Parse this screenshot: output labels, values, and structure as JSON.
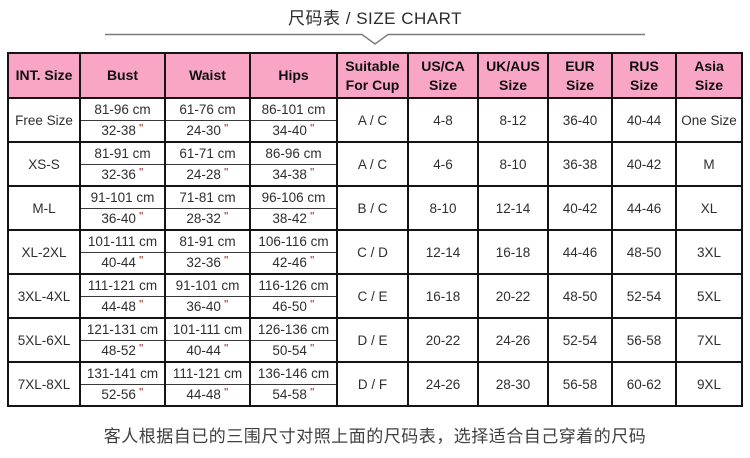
{
  "page": {
    "title": "尺码表 / SIZE CHART",
    "note": "客人根据自已的三围尺寸对照上面的尺码表，选择适合自己穿着的尺码"
  },
  "colors": {
    "header_bg": "#f8a5c6",
    "table_border": "#141414",
    "inch_mark_color": "#b2524f"
  },
  "table": {
    "inch_mark": "\"",
    "headers": [
      {
        "id": "int-size",
        "lines": [
          "INT. Size"
        ]
      },
      {
        "id": "bust",
        "lines": [
          "Bust"
        ]
      },
      {
        "id": "waist",
        "lines": [
          "Waist"
        ]
      },
      {
        "id": "hips",
        "lines": [
          "Hips"
        ]
      },
      {
        "id": "cup",
        "lines": [
          "Suitable",
          "For Cup"
        ]
      },
      {
        "id": "us-ca",
        "lines": [
          "US/CA",
          "Size"
        ]
      },
      {
        "id": "uk-aus",
        "lines": [
          "UK/AUS",
          "Size"
        ]
      },
      {
        "id": "eur",
        "lines": [
          "EUR",
          "Size"
        ]
      },
      {
        "id": "rus",
        "lines": [
          "RUS",
          "Size"
        ]
      },
      {
        "id": "asia",
        "lines": [
          "Asia",
          "Size"
        ]
      }
    ],
    "rows": [
      {
        "int_size": "Free Size",
        "bust_cm": "81-96 cm",
        "bust_in": "32-38",
        "waist_cm": "61-76 cm",
        "waist_in": "24-30",
        "hips_cm": "86-101 cm",
        "hips_in": "34-40",
        "cup": "A / C",
        "us_ca": "4-8",
        "uk_aus": "8-12",
        "eur": "36-40",
        "rus": "40-44",
        "asia": "One Size"
      },
      {
        "int_size": "XS-S",
        "bust_cm": "81-91 cm",
        "bust_in": "32-36",
        "waist_cm": "61-71 cm",
        "waist_in": "24-28",
        "hips_cm": "86-96 cm",
        "hips_in": "34-38",
        "cup": "A / C",
        "us_ca": "4-6",
        "uk_aus": "8-10",
        "eur": "36-38",
        "rus": "40-42",
        "asia": "M"
      },
      {
        "int_size": "M-L",
        "bust_cm": "91-101 cm",
        "bust_in": "36-40",
        "waist_cm": "71-81 cm",
        "waist_in": "28-32",
        "hips_cm": "96-106 cm",
        "hips_in": "38-42",
        "cup": "B / C",
        "us_ca": "8-10",
        "uk_aus": "12-14",
        "eur": "40-42",
        "rus": "44-46",
        "asia": "XL"
      },
      {
        "int_size": "XL-2XL",
        "bust_cm": "101-111 cm",
        "bust_in": "40-44",
        "waist_cm": "81-91 cm",
        "waist_in": "32-36",
        "hips_cm": "106-116 cm",
        "hips_in": "42-46",
        "cup": "C / D",
        "us_ca": "12-14",
        "uk_aus": "16-18",
        "eur": "44-46",
        "rus": "48-50",
        "asia": "3XL"
      },
      {
        "int_size": "3XL-4XL",
        "bust_cm": "111-121 cm",
        "bust_in": "44-48",
        "waist_cm": "91-101 cm",
        "waist_in": "36-40",
        "hips_cm": "116-126 cm",
        "hips_in": "46-50",
        "cup": "C / E",
        "us_ca": "16-18",
        "uk_aus": "20-22",
        "eur": "48-50",
        "rus": "52-54",
        "asia": "5XL"
      },
      {
        "int_size": "5XL-6XL",
        "bust_cm": "121-131 cm",
        "bust_in": "48-52",
        "waist_cm": "101-111 cm",
        "waist_in": "40-44",
        "hips_cm": "126-136 cm",
        "hips_in": "50-54",
        "cup": "D / E",
        "us_ca": "20-22",
        "uk_aus": "24-26",
        "eur": "52-54",
        "rus": "56-58",
        "asia": "7XL"
      },
      {
        "int_size": "7XL-8XL",
        "bust_cm": "131-141 cm",
        "bust_in": "52-56",
        "waist_cm": "111-121 cm",
        "waist_in": "44-48",
        "hips_cm": "136-146 cm",
        "hips_in": "54-58",
        "cup": "D / F",
        "us_ca": "24-26",
        "uk_aus": "28-30",
        "eur": "56-58",
        "rus": "60-62",
        "asia": "9XL"
      }
    ]
  }
}
